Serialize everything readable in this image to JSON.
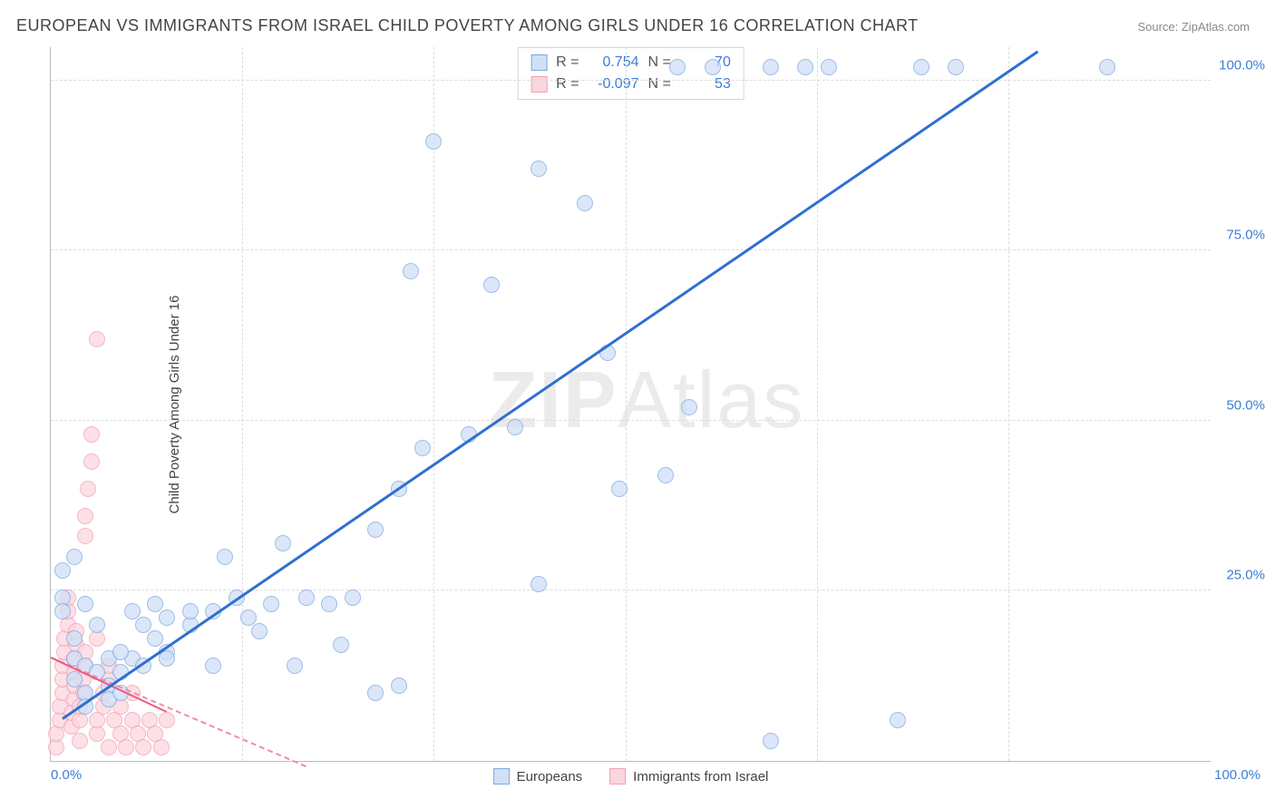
{
  "title": "EUROPEAN VS IMMIGRANTS FROM ISRAEL CHILD POVERTY AMONG GIRLS UNDER 16 CORRELATION CHART",
  "source": "Source: ZipAtlas.com",
  "watermark": {
    "bold": "ZIP",
    "rest": "Atlas"
  },
  "ylabel": "Child Poverty Among Girls Under 16",
  "chart": {
    "type": "scatter",
    "xlim": [
      0,
      100
    ],
    "ylim": [
      0,
      105
    ],
    "yticks": [
      25,
      50,
      75,
      100
    ],
    "ytick_labels": [
      "25.0%",
      "50.0%",
      "75.0%",
      "100.0%"
    ],
    "xticks": [
      0,
      100
    ],
    "xtick_labels": [
      "0.0%",
      "100.0%"
    ],
    "vgrid": [
      16.5,
      33,
      49.5,
      66,
      82.5
    ],
    "background_color": "#ffffff",
    "grid_color": "#dddddd",
    "axis_color": "#bbbbbb",
    "tick_label_color": "#3b7dd8"
  },
  "series": {
    "blue": {
      "label": "Europeans",
      "fill": "#cfe0f7",
      "stroke": "#7fa8e0",
      "marker_opacity": 0.75,
      "marker_radius": 9,
      "R": "0.754",
      "N": "70",
      "trend": {
        "x1": 1,
        "y1": 6,
        "x2": 85,
        "y2": 104,
        "color": "#2f6fd0",
        "width": 3,
        "dash": false
      },
      "points": [
        [
          1,
          28
        ],
        [
          1,
          24
        ],
        [
          1,
          22
        ],
        [
          2,
          30
        ],
        [
          2,
          18
        ],
        [
          2,
          15
        ],
        [
          2,
          12
        ],
        [
          3,
          14
        ],
        [
          3,
          10
        ],
        [
          3,
          8
        ],
        [
          4,
          20
        ],
        [
          4,
          13
        ],
        [
          5,
          15
        ],
        [
          5,
          11
        ],
        [
          5,
          9
        ],
        [
          6,
          13
        ],
        [
          6,
          10
        ],
        [
          7,
          22
        ],
        [
          7,
          15
        ],
        [
          8,
          20
        ],
        [
          8,
          14
        ],
        [
          9,
          23
        ],
        [
          9,
          18
        ],
        [
          10,
          21
        ],
        [
          10,
          16
        ],
        [
          10,
          15
        ],
        [
          12,
          20
        ],
        [
          12,
          22
        ],
        [
          14,
          22
        ],
        [
          14,
          14
        ],
        [
          16,
          24
        ],
        [
          17,
          21
        ],
        [
          18,
          19
        ],
        [
          19,
          23
        ],
        [
          20,
          32
        ],
        [
          21,
          14
        ],
        [
          22,
          24
        ],
        [
          24,
          23
        ],
        [
          25,
          17
        ],
        [
          26,
          24
        ],
        [
          28,
          34
        ],
        [
          30,
          40
        ],
        [
          31,
          72
        ],
        [
          32,
          46
        ],
        [
          33,
          91
        ],
        [
          36,
          48
        ],
        [
          38,
          70
        ],
        [
          40,
          49
        ],
        [
          42,
          26
        ],
        [
          42,
          87
        ],
        [
          46,
          82
        ],
        [
          48,
          60
        ],
        [
          49,
          40
        ],
        [
          53,
          42
        ],
        [
          55,
          52
        ],
        [
          62,
          3
        ],
        [
          62,
          102
        ],
        [
          65,
          102
        ],
        [
          67,
          102
        ],
        [
          75,
          102
        ],
        [
          78,
          102
        ],
        [
          91,
          102
        ],
        [
          54,
          102
        ],
        [
          57,
          102
        ],
        [
          73,
          6
        ],
        [
          28,
          10
        ],
        [
          30,
          11
        ],
        [
          15,
          30
        ],
        [
          6,
          16
        ],
        [
          3,
          23
        ]
      ]
    },
    "pink": {
      "label": "Immigrants from Israel",
      "fill": "#fbd6de",
      "stroke": "#f29fb3",
      "marker_opacity": 0.75,
      "marker_radius": 9,
      "R": "-0.097",
      "N": "53",
      "trend": {
        "x1": 0,
        "y1": 15,
        "x2": 22,
        "y2": -1,
        "color": "#f18aa4",
        "width": 2,
        "dash": true
      },
      "trend_solid": {
        "x1": 0,
        "y1": 15,
        "x2": 10,
        "y2": 7,
        "color": "#ef5a7e",
        "width": 2
      },
      "points": [
        [
          0.5,
          2
        ],
        [
          0.5,
          4
        ],
        [
          0.8,
          6
        ],
        [
          0.8,
          8
        ],
        [
          1,
          10
        ],
        [
          1,
          12
        ],
        [
          1,
          14
        ],
        [
          1.2,
          16
        ],
        [
          1.2,
          18
        ],
        [
          1.5,
          20
        ],
        [
          1.5,
          22
        ],
        [
          1.5,
          24
        ],
        [
          1.8,
          5
        ],
        [
          1.8,
          7
        ],
        [
          2,
          9
        ],
        [
          2,
          11
        ],
        [
          2,
          13
        ],
        [
          2,
          15
        ],
        [
          2.2,
          17
        ],
        [
          2.2,
          19
        ],
        [
          2.5,
          3
        ],
        [
          2.5,
          6
        ],
        [
          2.5,
          8
        ],
        [
          2.8,
          10
        ],
        [
          2.8,
          12
        ],
        [
          3,
          14
        ],
        [
          3,
          16
        ],
        [
          3,
          33
        ],
        [
          3,
          36
        ],
        [
          3.2,
          40
        ],
        [
          3.5,
          44
        ],
        [
          3.5,
          48
        ],
        [
          4,
          62
        ],
        [
          4,
          4
        ],
        [
          4,
          6
        ],
        [
          4.5,
          8
        ],
        [
          4.5,
          10
        ],
        [
          5,
          12
        ],
        [
          5,
          14
        ],
        [
          5,
          2
        ],
        [
          5.5,
          6
        ],
        [
          6,
          4
        ],
        [
          6,
          8
        ],
        [
          6.5,
          2
        ],
        [
          7,
          6
        ],
        [
          7,
          10
        ],
        [
          7.5,
          4
        ],
        [
          8,
          2
        ],
        [
          8.5,
          6
        ],
        [
          9,
          4
        ],
        [
          9.5,
          2
        ],
        [
          10,
          6
        ],
        [
          4,
          18
        ]
      ]
    }
  },
  "stats_box": {
    "rows": [
      {
        "swatch_fill": "#cfe0f7",
        "swatch_stroke": "#7fa8e0",
        "R_label": "R =",
        "R": "0.754",
        "N_label": "N =",
        "N": "70"
      },
      {
        "swatch_fill": "#fbd6de",
        "swatch_stroke": "#f29fb3",
        "R_label": "R =",
        "R": "-0.097",
        "N_label": "N =",
        "N": "53"
      }
    ]
  }
}
